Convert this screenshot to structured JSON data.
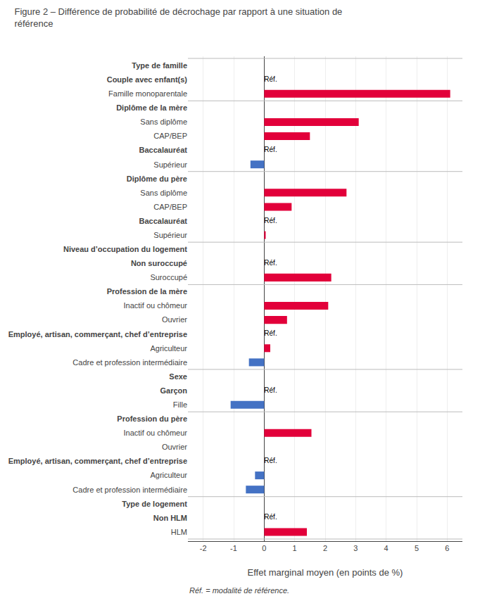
{
  "chart_data": {
    "type": "bar",
    "orientation": "horizontal",
    "title": "Figure 2 – Différence de probabilité de décrochage par rapport à une situation de\nréférence",
    "xlabel": "Effet marginal moyen (en points de %)",
    "annotations": [
      {
        "text": "Réf. = modalité de référence."
      }
    ],
    "xlim": [
      -2.5,
      6.5
    ],
    "xticks": [
      -2,
      -1,
      0,
      1,
      2,
      3,
      4,
      5,
      6
    ],
    "grid": true,
    "categories": [
      "Type de famille",
      "Couple avec enfant(s)",
      "Famille monoparentale",
      "Diplôme de la mère",
      "Sans diplôme",
      "CAP/BEP",
      "Baccalauréat",
      "Supérieur",
      "Diplôme du père",
      "Sans diplôme",
      "CAP/BEP",
      "Baccalauréat",
      "Supérieur",
      "Niveau d’occupation du logement",
      "Non suroccupé",
      "Suroccupé",
      "Profession de la mère",
      "Inactif ou chômeur",
      "Ouvrier",
      "Employé, artisan, commerçant, chef d’entreprise",
      "Agriculteur",
      "Cadre et profession intermédiaire",
      "Sexe",
      "Garçon",
      "Fille",
      "Profession du père",
      "Inactif ou chômeur",
      "Ouvrier",
      "Employé, artisan, commerçant, chef d’entreprise",
      "Agriculteur",
      "Cadre et profession intermédiaire",
      "Type de logement",
      "Non HLM",
      "HLM"
    ],
    "values": [
      null,
      0,
      6.1,
      null,
      3.1,
      1.5,
      0,
      -0.45,
      null,
      2.7,
      0.9,
      0,
      0.05,
      null,
      0,
      2.2,
      null,
      2.1,
      0.75,
      0,
      0.2,
      -0.5,
      null,
      0,
      -1.1,
      null,
      1.55,
      0.0,
      0,
      -0.3,
      -0.6,
      null,
      0,
      1.4
    ],
    "value_labels": [
      null,
      "Réf.",
      null,
      null,
      null,
      null,
      "Réf.",
      null,
      null,
      null,
      null,
      "Réf.",
      null,
      null,
      "Réf.",
      null,
      null,
      null,
      null,
      "Réf.",
      null,
      null,
      null,
      "Réf.",
      null,
      null,
      null,
      null,
      "Réf.",
      null,
      null,
      null,
      "Réf.",
      null
    ],
    "colors": [
      null,
      null,
      "#e2003a",
      null,
      "#e2003a",
      "#e2003a",
      null,
      "#4472c4",
      null,
      "#e2003a",
      "#e2003a",
      null,
      "#e2003a",
      null,
      null,
      "#e2003a",
      null,
      "#e2003a",
      "#e2003a",
      null,
      "#e2003a",
      "#4472c4",
      null,
      null,
      "#4472c4",
      null,
      "#e2003a",
      null,
      null,
      "#4472c4",
      "#4472c4",
      null,
      null,
      "#e2003a"
    ]
  }
}
